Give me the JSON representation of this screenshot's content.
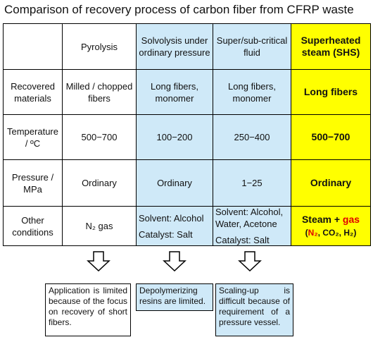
{
  "title": "Comparison of recovery process of carbon fiber from CFRP waste",
  "table": {
    "columns": [
      "Pyrolysis",
      "Solvolysis under ordinary pressure",
      "Super/sub-critical fluid",
      "Superheated steam (SHS)"
    ],
    "rows": [
      {
        "label": "Recovered materials",
        "cells": [
          "Milled / chopped fibers",
          "Long fibers, monomer",
          "Long fibers, monomer",
          "Long fibers"
        ]
      },
      {
        "label": "Temperature / ºC",
        "cells": [
          "500−700",
          "100−200",
          "250−400",
          "500−700"
        ]
      },
      {
        "label": "Pressure / MPa",
        "cells": [
          "Ordinary",
          "Ordinary",
          "1−25",
          "Ordinary"
        ]
      },
      {
        "label": "Other conditions",
        "cells": [
          "N₂ gas",
          {
            "lines": [
              "Solvent: Alcohol",
              "Catalyst: Salt"
            ]
          },
          {
            "lines": [
              "Solvent: Alcohol, Water, Acetone",
              "Catalyst: Salt"
            ]
          },
          {
            "lines": [
              [
                {
                  "text": "Steam + "
                },
                {
                  "text": "gas",
                  "color": "#e00000"
                }
              ],
              [
                {
                  "text": "("
                },
                {
                  "text": "N₂",
                  "color": "#e00000"
                },
                {
                  "text": ", CO₂, H₂)"
                }
              ]
            ]
          }
        ]
      }
    ]
  },
  "notes": [
    "Application is limited because of the focus on recovery of short fibers.",
    "Depolymerizing resins are limited.",
    "Scaling-up is difficult because of requirement of a pressure vessel."
  ]
}
